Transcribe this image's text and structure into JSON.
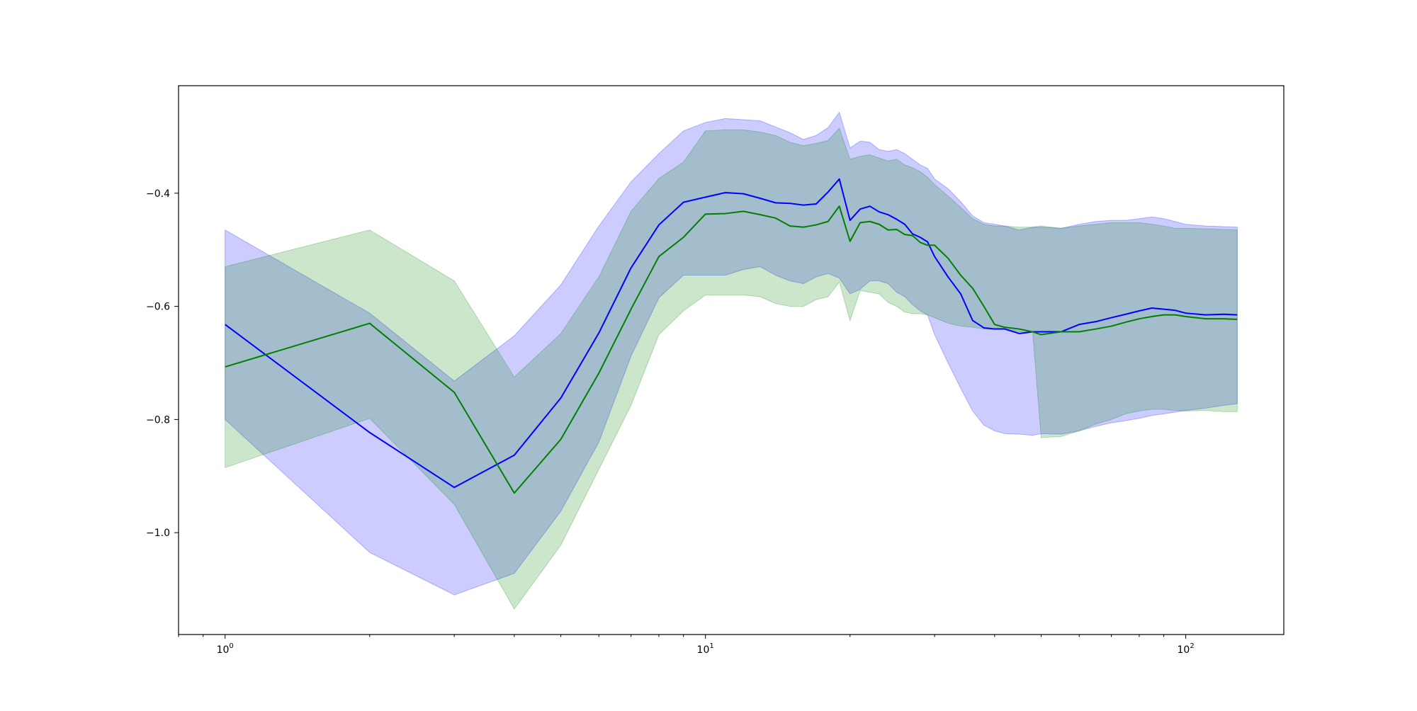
{
  "chart_data": {
    "type": "line",
    "title": "",
    "xlabel": "",
    "ylabel": "",
    "xscale": "log",
    "xlim": [
      0.8,
      160
    ],
    "ylim": [
      -1.18,
      -0.21
    ],
    "grid": false,
    "legend": "none",
    "x_tick_labels": [
      {
        "value": 1,
        "base": "10",
        "exp": "0"
      },
      {
        "value": 10,
        "base": "10",
        "exp": "1"
      },
      {
        "value": 100,
        "base": "10",
        "exp": "2"
      }
    ],
    "y_tick_labels": [
      {
        "value": -0.4,
        "label": "−0.4"
      },
      {
        "value": -0.6,
        "label": "−0.6"
      },
      {
        "value": -0.8,
        "label": "−0.8"
      },
      {
        "value": -1.0,
        "label": "−1.0"
      }
    ],
    "series": [
      {
        "color": "#0000ff",
        "band_color": "#0000ff",
        "band_opacity": 0.2,
        "x": [
          1,
          2,
          3,
          4,
          5,
          6,
          7,
          8,
          9,
          10,
          11,
          12,
          13,
          14,
          15,
          16,
          17,
          18,
          19,
          20,
          21,
          22,
          23,
          24,
          25,
          26,
          27,
          28,
          29,
          30,
          32,
          34,
          36,
          38,
          40,
          42,
          45,
          48,
          50,
          55,
          60,
          65,
          70,
          75,
          80,
          85,
          90,
          95,
          100,
          110,
          120,
          128
        ],
        "mean": [
          -0.632,
          -0.823,
          -0.92,
          -0.863,
          -0.762,
          -0.647,
          -0.532,
          -0.456,
          -0.416,
          -0.407,
          -0.399,
          -0.401,
          -0.409,
          -0.417,
          -0.418,
          -0.421,
          -0.419,
          -0.398,
          -0.375,
          -0.448,
          -0.428,
          -0.423,
          -0.433,
          -0.438,
          -0.446,
          -0.455,
          -0.472,
          -0.478,
          -0.486,
          -0.512,
          -0.548,
          -0.578,
          -0.625,
          -0.638,
          -0.64,
          -0.64,
          -0.648,
          -0.645,
          -0.645,
          -0.645,
          -0.632,
          -0.627,
          -0.62,
          -0.614,
          -0.608,
          -0.603,
          -0.605,
          -0.607,
          -0.612,
          -0.615,
          -0.614,
          -0.615
        ],
        "upper": [
          -0.465,
          -0.612,
          -0.732,
          -0.652,
          -0.562,
          -0.458,
          -0.38,
          -0.33,
          -0.29,
          -0.275,
          -0.268,
          -0.27,
          -0.272,
          -0.283,
          -0.293,
          -0.305,
          -0.298,
          -0.284,
          -0.257,
          -0.32,
          -0.308,
          -0.31,
          -0.323,
          -0.326,
          -0.323,
          -0.33,
          -0.34,
          -0.35,
          -0.356,
          -0.375,
          -0.392,
          -0.415,
          -0.44,
          -0.452,
          -0.455,
          -0.458,
          -0.465,
          -0.46,
          -0.46,
          -0.462,
          -0.455,
          -0.45,
          -0.448,
          -0.448,
          -0.445,
          -0.442,
          -0.445,
          -0.45,
          -0.455,
          -0.458,
          -0.459,
          -0.46
        ],
        "lower": [
          -0.8,
          -1.035,
          -1.11,
          -1.072,
          -0.962,
          -0.84,
          -0.688,
          -0.585,
          -0.545,
          -0.545,
          -0.545,
          -0.535,
          -0.53,
          -0.545,
          -0.555,
          -0.56,
          -0.548,
          -0.542,
          -0.55,
          -0.578,
          -0.57,
          -0.555,
          -0.555,
          -0.56,
          -0.575,
          -0.583,
          -0.597,
          -0.608,
          -0.615,
          -0.65,
          -0.7,
          -0.745,
          -0.785,
          -0.81,
          -0.82,
          -0.825,
          -0.826,
          -0.828,
          -0.825,
          -0.826,
          -0.82,
          -0.812,
          -0.806,
          -0.802,
          -0.798,
          -0.793,
          -0.79,
          -0.787,
          -0.784,
          -0.78,
          -0.775,
          -0.772
        ]
      },
      {
        "color": "#008000",
        "band_color": "#008000",
        "band_opacity": 0.2,
        "x": [
          1,
          2,
          3,
          4,
          5,
          6,
          7,
          8,
          9,
          10,
          11,
          12,
          13,
          14,
          15,
          16,
          17,
          18,
          19,
          20,
          21,
          22,
          23,
          24,
          25,
          26,
          27,
          28,
          29,
          30,
          32,
          34,
          36,
          38,
          40,
          42,
          45,
          48,
          50,
          55,
          60,
          65,
          70,
          75,
          80,
          85,
          90,
          95,
          100,
          110,
          120,
          128
        ],
        "mean": [
          -0.707,
          -0.63,
          -0.752,
          -0.93,
          -0.835,
          -0.718,
          -0.605,
          -0.512,
          -0.478,
          -0.437,
          -0.436,
          -0.432,
          -0.438,
          -0.444,
          -0.458,
          -0.46,
          -0.456,
          -0.45,
          -0.423,
          -0.485,
          -0.452,
          -0.45,
          -0.455,
          -0.465,
          -0.464,
          -0.473,
          -0.475,
          -0.487,
          -0.492,
          -0.492,
          -0.515,
          -0.545,
          -0.568,
          -0.6,
          -0.632,
          -0.637,
          -0.64,
          -0.645,
          -0.65,
          -0.645,
          -0.645,
          -0.64,
          -0.635,
          -0.628,
          -0.622,
          -0.618,
          -0.615,
          -0.615,
          -0.618,
          -0.622,
          -0.622,
          -0.623
        ],
        "upper": [
          -0.53,
          -0.465,
          -0.555,
          -0.725,
          -0.648,
          -0.548,
          -0.432,
          -0.374,
          -0.345,
          -0.29,
          -0.288,
          -0.288,
          -0.292,
          -0.298,
          -0.31,
          -0.316,
          -0.312,
          -0.307,
          -0.285,
          -0.34,
          -0.335,
          -0.332,
          -0.338,
          -0.343,
          -0.34,
          -0.35,
          -0.355,
          -0.362,
          -0.372,
          -0.385,
          -0.405,
          -0.425,
          -0.445,
          -0.455,
          -0.458,
          -0.458,
          -0.46,
          -0.46,
          -0.458,
          -0.462,
          -0.458,
          -0.455,
          -0.452,
          -0.452,
          -0.452,
          -0.455,
          -0.458,
          -0.462,
          -0.462,
          -0.463,
          -0.464,
          -0.465
        ],
        "lower": [
          -0.885,
          -0.798,
          -0.95,
          -1.135,
          -1.022,
          -0.888,
          -0.775,
          -0.65,
          -0.608,
          -0.58,
          -0.58,
          -0.58,
          -0.583,
          -0.595,
          -0.6,
          -0.6,
          -0.588,
          -0.583,
          -0.557,
          -0.625,
          -0.572,
          -0.575,
          -0.578,
          -0.593,
          -0.6,
          -0.61,
          -0.613,
          -0.613,
          -0.615,
          -0.62,
          -0.63,
          -0.635,
          -0.637,
          -0.64,
          -0.64,
          -0.64,
          -0.645,
          -0.645,
          -0.832,
          -0.83,
          -0.82,
          -0.808,
          -0.8,
          -0.79,
          -0.785,
          -0.782,
          -0.782,
          -0.784,
          -0.785,
          -0.784,
          -0.786,
          -0.786
        ]
      }
    ]
  }
}
